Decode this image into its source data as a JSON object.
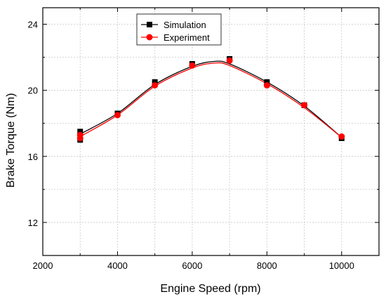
{
  "chart_data": {
    "type": "line",
    "xlabel": "Engine Speed (rpm)",
    "ylabel": "Brake Torque (Nm)",
    "xlim": [
      2000,
      11000
    ],
    "ylim": [
      10,
      25
    ],
    "x_ticks": [
      2000,
      4000,
      6000,
      8000,
      10000
    ],
    "y_ticks": [
      12,
      16,
      20,
      24
    ],
    "grid": true,
    "legend_position": "top-left",
    "series": [
      {
        "name": "Simulation",
        "color": "#000000",
        "marker": "square",
        "x": [
          3000,
          3000,
          4000,
          5000,
          6000,
          7000,
          8000,
          9000,
          10000
        ],
        "y": [
          17.0,
          17.5,
          18.6,
          20.5,
          21.6,
          21.9,
          20.5,
          19.1,
          17.1
        ]
      },
      {
        "name": "Experiment",
        "color": "#ff0000",
        "marker": "circle",
        "x": [
          3000,
          3000,
          4000,
          5000,
          6000,
          7000,
          8000,
          9000,
          10000
        ],
        "y": [
          17.1,
          17.3,
          18.5,
          20.3,
          21.5,
          21.8,
          20.3,
          19.1,
          17.2
        ]
      }
    ],
    "curves": [
      {
        "series": "Simulation",
        "x": [
          3000,
          4000,
          5000,
          6000,
          6600,
          7000,
          8000,
          9000,
          10000
        ],
        "y": [
          17.35,
          18.6,
          20.35,
          21.45,
          21.75,
          21.6,
          20.5,
          19.05,
          17.15
        ]
      },
      {
        "series": "Experiment",
        "x": [
          3000,
          4000,
          5000,
          6000,
          6600,
          7000,
          8000,
          9000,
          10000
        ],
        "y": [
          17.2,
          18.5,
          20.25,
          21.35,
          21.65,
          21.5,
          20.4,
          18.95,
          17.15
        ]
      }
    ]
  }
}
